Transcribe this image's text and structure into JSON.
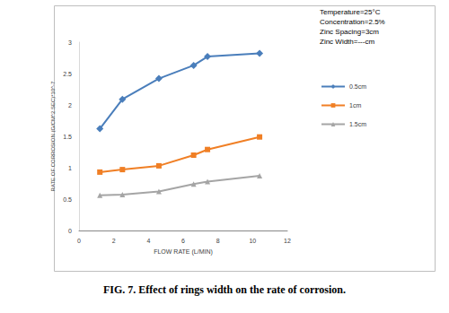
{
  "chart_data": {
    "type": "line",
    "title": "FIG. 7. Effect of rings width on the rate of corrosion.",
    "x_label": "FLOW RATE (L/MIN)",
    "y_label": "RATE OF CORROSION (G/CM^2.SEC)*10^-7",
    "annotations": [
      "Temperature=25°C",
      "Concentration=2.5%",
      "Zinc Spacing=3cm",
      "Zinc Width=---cm"
    ],
    "xlim": [
      0,
      12
    ],
    "xticks": [
      0,
      2,
      4,
      6,
      8,
      10,
      12
    ],
    "ylim": [
      0,
      3
    ],
    "yticks": [
      0,
      0.5,
      1,
      1.5,
      2,
      2.5,
      3
    ],
    "grid": false,
    "legend": "right",
    "series": [
      {
        "name": "0.5cm",
        "color": "#4a7ebb",
        "marker": "diamond",
        "line_style": "solid",
        "x": [
          1.2,
          2.5,
          4.6,
          6.6,
          7.4,
          10.4
        ],
        "values": [
          1.62,
          2.09,
          2.42,
          2.63,
          2.77,
          2.82
        ]
      },
      {
        "name": "1cm",
        "color": "#f07f25",
        "marker": "square",
        "line_style": "solid",
        "x": [
          1.2,
          2.5,
          4.6,
          6.6,
          7.4,
          10.4
        ],
        "values": [
          0.93,
          0.97,
          1.03,
          1.2,
          1.29,
          1.49
        ]
      },
      {
        "name": "1.5cm",
        "color": "#a5a5a5",
        "marker": "triangle",
        "line_style": "solid",
        "x": [
          1.2,
          2.5,
          4.6,
          6.6,
          7.4,
          10.4
        ],
        "values": [
          0.56,
          0.57,
          0.62,
          0.74,
          0.78,
          0.87
        ]
      }
    ]
  }
}
